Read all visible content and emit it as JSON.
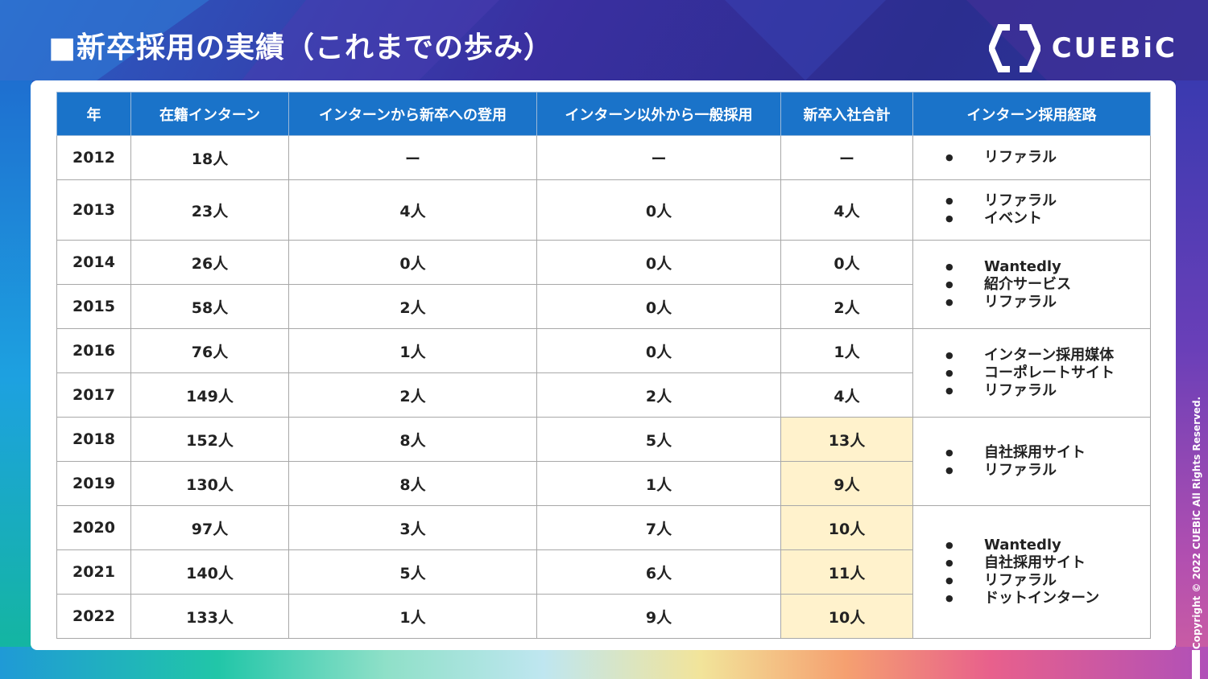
{
  "title": "■新卒採用の実績（これまでの歩み）",
  "logo": {
    "text": "CUEBiC",
    "icon": "hexagon-bracket-logo-icon"
  },
  "table": {
    "headers": [
      "年",
      "在籍インターン",
      "インターンから新卒への登用",
      "インターン以外から一般採用",
      "新卒入社合計",
      "インターン採用経路"
    ],
    "rows": [
      {
        "year": "2012",
        "interns": "18人",
        "converted": "ー",
        "general": "ー",
        "total": "ー",
        "highlight": false
      },
      {
        "year": "2013",
        "interns": "23人",
        "converted": "4人",
        "general": "0人",
        "total": "4人",
        "highlight": false
      },
      {
        "year": "2014",
        "interns": "26人",
        "converted": "0人",
        "general": "0人",
        "total": "0人",
        "highlight": false
      },
      {
        "year": "2015",
        "interns": "58人",
        "converted": "2人",
        "general": "0人",
        "total": "2人",
        "highlight": false
      },
      {
        "year": "2016",
        "interns": "76人",
        "converted": "1人",
        "general": "0人",
        "total": "1人",
        "highlight": false
      },
      {
        "year": "2017",
        "interns": "149人",
        "converted": "2人",
        "general": "2人",
        "total": "4人",
        "highlight": false
      },
      {
        "year": "2018",
        "interns": "152人",
        "converted": "8人",
        "general": "5人",
        "total": "13人",
        "highlight": true
      },
      {
        "year": "2019",
        "interns": "130人",
        "converted": "8人",
        "general": "1人",
        "total": "9人",
        "highlight": true
      },
      {
        "year": "2020",
        "interns": "97人",
        "converted": "3人",
        "general": "7人",
        "total": "10人",
        "highlight": true
      },
      {
        "year": "2021",
        "interns": "140人",
        "converted": "5人",
        "general": "6人",
        "total": "11人",
        "highlight": true
      },
      {
        "year": "2022",
        "interns": "133人",
        "converted": "1人",
        "general": "9人",
        "total": "10人",
        "highlight": true
      }
    ],
    "routes": [
      [
        "リファラル"
      ],
      [
        "リファラル",
        "イベント"
      ],
      [
        "Wantedly",
        "紹介サービス",
        "リファラル"
      ],
      [
        "インターン採用媒体",
        "コーポレートサイト",
        "リファラル"
      ],
      [
        "自社採用サイト",
        "リファラル"
      ],
      [
        "Wantedly",
        "自社採用サイト",
        "リファラル",
        "ドットインターン"
      ]
    ]
  },
  "copyright": "Copyright © 2022 CUEBiC All Rights Reserved."
}
